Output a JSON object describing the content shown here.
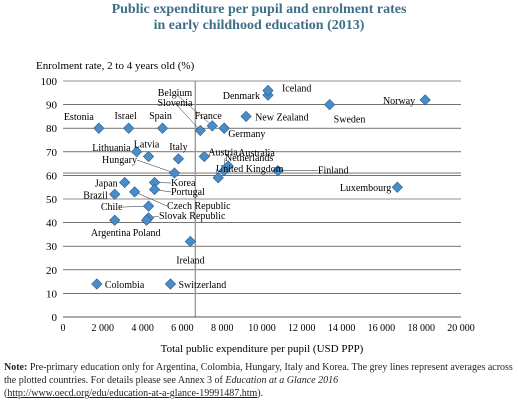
{
  "title_lines": [
    "Public expenditure per pupil and enrolment rates",
    "in early childhood education (2013)"
  ],
  "note": {
    "label": "Note:",
    "text_a": "Pre-primary education only for Argentina, Colombia, Hungary, Italy and Korea. The grey lines represent averages across the plotted countries. For details please see Annex 3 of",
    "italic": "Education at a Glance 2016",
    "open_paren": "(",
    "link": "http://www.oecd.org/edu/education-at-a-glance-19991487.htm",
    "close_paren": ")."
  },
  "colors": {
    "marker": "#4a8cc7",
    "marker_stroke": "#2c5f8c",
    "average_line": "#9a9a9a",
    "grid": "#231f20",
    "title": "#3f6f86"
  },
  "chart_data": {
    "type": "scatter",
    "title": "Public expenditure per pupil and enrolment rates in early childhood education (2013)",
    "xlabel": "Total public expenditure per pupil (USD PPP)",
    "ylabel": "Enrolment rate, 2 to 4 years old (%)",
    "xlim": [
      0,
      20000
    ],
    "ylim": [
      0,
      100
    ],
    "xticks": [
      0,
      2000,
      4000,
      6000,
      8000,
      10000,
      12000,
      14000,
      16000,
      18000,
      20000
    ],
    "xtick_labels": [
      "0",
      "2 000",
      "4 000",
      "6 000",
      "8 000",
      "10 000",
      "12 000",
      "14 000",
      "16 000",
      "18 000",
      "20 000"
    ],
    "yticks": [
      0,
      10,
      20,
      30,
      40,
      50,
      60,
      70,
      80,
      90,
      100
    ],
    "ytick_labels": [
      "0",
      "10",
      "20",
      "30",
      "40",
      "50",
      "60",
      "70",
      "80",
      "90",
      "100"
    ],
    "grid": "horizontal",
    "averages": {
      "x": 6650,
      "y": 61
    },
    "points": [
      {
        "name": "Estonia",
        "x": 1800,
        "y": 80
      },
      {
        "name": "Israel",
        "x": 3300,
        "y": 80
      },
      {
        "name": "Spain",
        "x": 5000,
        "y": 80
      },
      {
        "name": "Belgium",
        "x": 7500,
        "y": 81
      },
      {
        "name": "Slovenia",
        "x": 6900,
        "y": 79
      },
      {
        "name": "France",
        "x": 8100,
        "y": 80
      },
      {
        "name": "Germany",
        "x": 8100,
        "y": 80
      },
      {
        "name": "Denmark",
        "x": 10300,
        "y": 94
      },
      {
        "name": "Iceland",
        "x": 10300,
        "y": 96
      },
      {
        "name": "New Zealand",
        "x": 9200,
        "y": 85
      },
      {
        "name": "Sweden",
        "x": 13400,
        "y": 90
      },
      {
        "name": "Norway",
        "x": 18200,
        "y": 92
      },
      {
        "name": "Italy",
        "x": 5800,
        "y": 67
      },
      {
        "name": "Latvia",
        "x": 4300,
        "y": 68
      },
      {
        "name": "Lithuania",
        "x": 3700,
        "y": 70
      },
      {
        "name": "Austria",
        "x": 7100,
        "y": 68
      },
      {
        "name": "Australia",
        "x": 8300,
        "y": 64
      },
      {
        "name": "Finland",
        "x": 10800,
        "y": 62
      },
      {
        "name": "Netherlands",
        "x": 8100,
        "y": 62
      },
      {
        "name": "United Kingdom",
        "x": 7800,
        "y": 59
      },
      {
        "name": "Hungary",
        "x": 5600,
        "y": 61
      },
      {
        "name": "Japan",
        "x": 3100,
        "y": 57
      },
      {
        "name": "Korea",
        "x": 4600,
        "y": 57
      },
      {
        "name": "Portugal",
        "x": 4600,
        "y": 54
      },
      {
        "name": "Brazil",
        "x": 2600,
        "y": 52
      },
      {
        "name": "Czech Republic",
        "x": 3600,
        "y": 53
      },
      {
        "name": "Chile",
        "x": 4300,
        "y": 47
      },
      {
        "name": "Slovak Republic",
        "x": 4300,
        "y": 42
      },
      {
        "name": "Argentina",
        "x": 2600,
        "y": 41
      },
      {
        "name": "Poland",
        "x": 4200,
        "y": 41
      },
      {
        "name": "Luxembourg",
        "x": 16800,
        "y": 55
      },
      {
        "name": "Ireland",
        "x": 6400,
        "y": 32
      },
      {
        "name": "Colombia",
        "x": 1700,
        "y": 14
      },
      {
        "name": "Switzerland",
        "x": 5400,
        "y": 14
      }
    ]
  }
}
